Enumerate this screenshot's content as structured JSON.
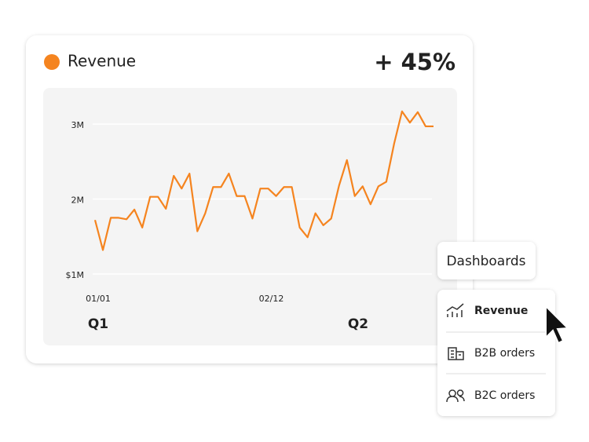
{
  "chart_data": {
    "type": "line",
    "title": "Revenue",
    "kpi": "+ 45%",
    "categories": [
      "01/01",
      null,
      null,
      null,
      null,
      null,
      null,
      null,
      null,
      null,
      null,
      null,
      null,
      null,
      null,
      null,
      null,
      null,
      null,
      null,
      null,
      null,
      "02/12",
      null,
      null,
      null,
      null,
      null,
      null,
      null,
      null,
      null,
      null,
      null,
      null,
      null,
      null,
      null,
      null,
      null,
      null,
      null,
      null,
      null
    ],
    "values": [
      1720000,
      1320000,
      1750000,
      1750000,
      1730000,
      1860000,
      1620000,
      2030000,
      2030000,
      1870000,
      2310000,
      2140000,
      2340000,
      1570000,
      1810000,
      2160000,
      2160000,
      2340000,
      2040000,
      2040000,
      1740000,
      2140000,
      2140000,
      2040000,
      2160000,
      2160000,
      1620000,
      1490000,
      1810000,
      1650000,
      1740000,
      2180000,
      2520000,
      2040000,
      2170000,
      1930000,
      2170000,
      2230000,
      2740000,
      3170000,
      3020000,
      3160000,
      2970000,
      2970000
    ],
    "color": "#f5841f",
    "ylim": [
      1000000,
      3200000
    ],
    "yticks": [
      {
        "value": 1000000,
        "label": "$1M"
      },
      {
        "value": 2000000,
        "label": "2M"
      },
      {
        "value": 3000000,
        "label": "3M"
      }
    ],
    "grid": true,
    "quarters": [
      "Q1",
      "Q2"
    ]
  },
  "menu": {
    "button": "Dashboards",
    "items": [
      "Revenue",
      "B2B orders",
      "B2C orders"
    ]
  }
}
